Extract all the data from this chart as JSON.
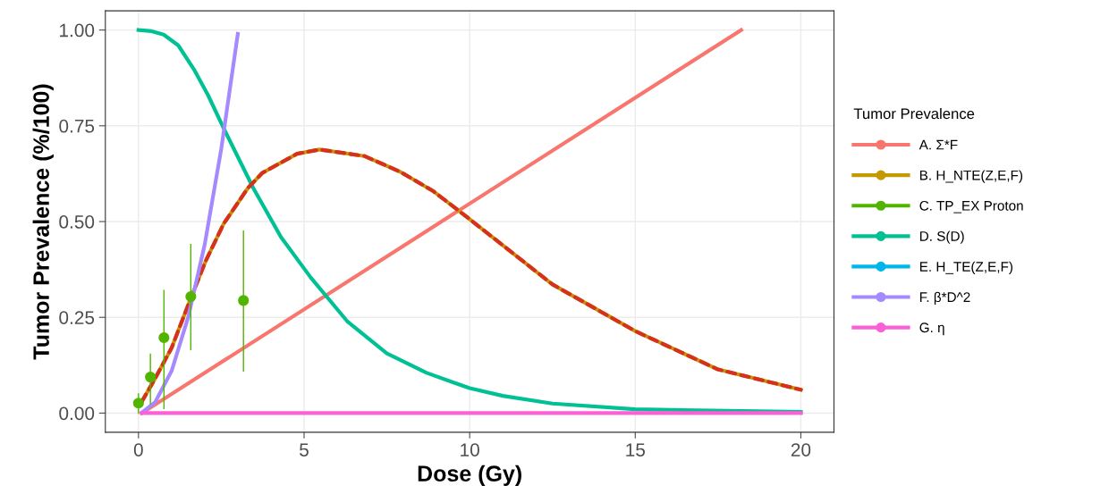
{
  "chart_data": {
    "type": "line",
    "xlabel": "Dose (Gy)",
    "ylabel": "Tumor Prevalence (%/100)",
    "legend_title": "Tumor Prevalence",
    "xlim": [
      -1,
      21
    ],
    "ylim": [
      -0.05,
      1.05
    ],
    "xticks": [
      0,
      5,
      10,
      15,
      20
    ],
    "yticks": [
      {
        "value": 0,
        "label": "0.00"
      },
      {
        "value": 0.25,
        "label": "0.25"
      },
      {
        "value": 0.5,
        "label": "0.50"
      },
      {
        "value": 0.75,
        "label": "0.75"
      },
      {
        "value": 1,
        "label": "1.00"
      }
    ],
    "grid": true,
    "legend": "right",
    "series": [
      {
        "name": "A. Σ*F",
        "color": "#f8766d",
        "x": [
          0.1,
          18.2
        ],
        "values": [
          0.0,
          1.0
        ]
      },
      {
        "name": "B. H_NTE(Z,E,F)",
        "color": "#c49a00",
        "x": [
          0.1,
          0.5,
          1.0,
          1.58,
          2.03,
          2.57,
          3.3,
          3.74,
          4.79,
          5.47,
          6.82,
          7.9,
          8.89,
          9.84,
          12.5,
          15,
          17.5,
          20
        ],
        "values": [
          0.03,
          0.09,
          0.17,
          0.3,
          0.397,
          0.494,
          0.587,
          0.627,
          0.677,
          0.688,
          0.671,
          0.63,
          0.58,
          0.517,
          0.336,
          0.214,
          0.114,
          0.061
        ]
      },
      {
        "name": "C. TP_EX Proton",
        "color": "#53b400",
        "type": "scatter",
        "marker": "circle",
        "x": [
          0,
          0.36,
          0.77,
          1.58,
          3.17
        ],
        "values": [
          0.026,
          0.094,
          0.197,
          0.304,
          0.294
        ],
        "errors": [
          [
            0.0,
            0.05
          ],
          [
            0.024,
            0.154
          ],
          [
            0.012,
            0.32
          ],
          [
            0.166,
            0.44
          ],
          [
            0.11,
            0.475
          ]
        ]
      },
      {
        "name": "D. S(D)",
        "color": "#00c094",
        "x": [
          0,
          0.4,
          0.76,
          1.2,
          1.67,
          2.1,
          2.57,
          3.47,
          4.3,
          5.2,
          6.3,
          7.5,
          8.7,
          10,
          11,
          12.5,
          15,
          20
        ],
        "values": [
          1.0,
          0.997,
          0.988,
          0.96,
          0.898,
          0.83,
          0.744,
          0.587,
          0.46,
          0.354,
          0.24,
          0.156,
          0.105,
          0.065,
          0.045,
          0.025,
          0.01,
          0.003
        ]
      },
      {
        "name": "E. H_TE(Z,E,F)",
        "color": "#00b6eb"
      },
      {
        "color": "#d7301f",
        "line_style": "dashed",
        "x": [
          0.1,
          0.5,
          1.0,
          1.58,
          2.03,
          2.57,
          3.3,
          3.74,
          4.79,
          5.47,
          6.82,
          7.9,
          8.89,
          9.84,
          12.5,
          15,
          17.5,
          20
        ],
        "values": [
          0.03,
          0.09,
          0.17,
          0.3,
          0.397,
          0.494,
          0.587,
          0.627,
          0.677,
          0.688,
          0.671,
          0.63,
          0.58,
          0.517,
          0.336,
          0.214,
          0.114,
          0.061
        ]
      },
      {
        "name": "F. β*D^2",
        "color": "#a58aff",
        "x": [
          0.1,
          0.5,
          1.0,
          1.5,
          2.0,
          2.5,
          3.0
        ],
        "values": [
          0.001,
          0.028,
          0.11,
          0.25,
          0.44,
          0.69,
          0.99
        ]
      },
      {
        "name": "G. η",
        "color": "#fb61d7",
        "x": [
          0.1,
          20
        ],
        "values": [
          0.0,
          0.0
        ]
      }
    ]
  }
}
